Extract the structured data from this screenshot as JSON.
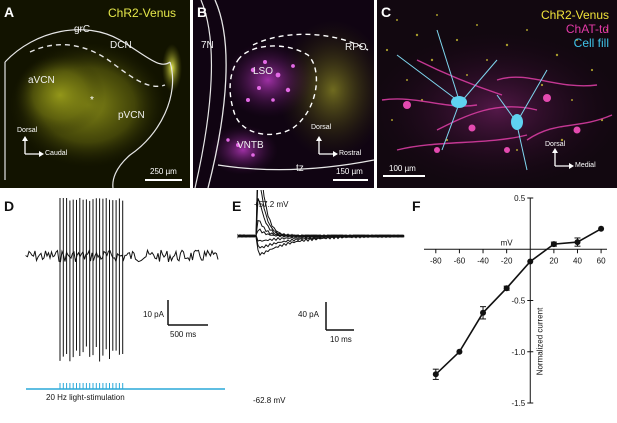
{
  "panels": {
    "A": {
      "label": "A",
      "channel": "ChR2-Venus",
      "regions": [
        "grC",
        "DCN",
        "aVCN",
        "pVCN"
      ],
      "marker": "*",
      "axes": {
        "vertical": "Dorsal",
        "horizontal": "Caudal"
      },
      "scale_bar": "250 µm",
      "colors": {
        "bg": "#121300",
        "signal": "#d8dc2c"
      }
    },
    "B": {
      "label": "B",
      "regions": [
        "7N",
        "LSO",
        "RPO",
        "VNTB",
        "tz"
      ],
      "axes": {
        "vertical": "Dorsal",
        "horizontal": "Rostral"
      },
      "scale_bar": "150 µm",
      "colors": {
        "bg": "#100412",
        "magenta": "#d23dd8",
        "yellow": "#c7c53a"
      }
    },
    "C": {
      "label": "C",
      "channels": [
        {
          "name": "ChR2-Venus",
          "color": "#f0e33a"
        },
        {
          "name": "ChAT-td",
          "color": "#e23aa6"
        },
        {
          "name": "Cell fill",
          "color": "#3fc3e8"
        }
      ],
      "axes": {
        "vertical": "Dorsal",
        "horizontal": "Medial"
      },
      "scale_bar": "100 µm"
    },
    "D": {
      "label": "D",
      "scale_y": "10 pA",
      "scale_x": "500 ms",
      "stim_label": "20 Hz light-stimulation",
      "spike_count": 20,
      "stim_color": "#2aa9d8"
    },
    "E": {
      "label": "E",
      "top_voltage": "+57.2 mV",
      "bottom_voltage": "-62.8 mV",
      "scale_y": "40 pA",
      "scale_x": "10 ms"
    },
    "F": {
      "label": "F",
      "chart_data": {
        "type": "line",
        "x": [
          -80,
          -60,
          -40,
          -20,
          0,
          20,
          40,
          60
        ],
        "y": [
          -1.22,
          -1.0,
          -0.62,
          -0.38,
          -0.12,
          0.05,
          0.07,
          0.2
        ],
        "error": [
          0.05,
          0,
          0.06,
          0.02,
          0,
          0.02,
          0.04,
          0
        ],
        "xlabel": "mV",
        "ylabel": "Normalized current",
        "xticks": [
          -80,
          -60,
          -40,
          -20,
          20,
          40,
          60
        ],
        "yticks": [
          0.5,
          -0.5,
          -1.0,
          -1.5
        ],
        "ytick_labels": [
          "0.5",
          "-0.5",
          "-1.0",
          "-1.5"
        ],
        "xlim": [
          -90,
          65
        ],
        "ylim": [
          -1.5,
          0.5
        ]
      }
    }
  }
}
